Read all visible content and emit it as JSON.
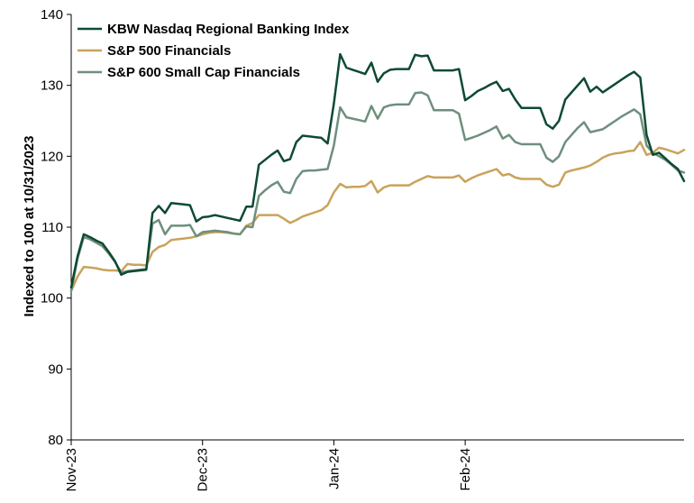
{
  "chart_data": {
    "type": "line",
    "title": "",
    "xlabel": "",
    "ylabel": "Indexed to 100 at 10/31/2023",
    "ylim": [
      80,
      140
    ],
    "yticks": [
      80,
      90,
      100,
      110,
      120,
      130,
      140
    ],
    "xticks": [
      "Nov-23",
      "Dec-23",
      "Jan-24",
      "Feb-24"
    ],
    "xtick_index": [
      0,
      21,
      42,
      63
    ],
    "legend_position": "top-left",
    "grid": false,
    "series": [
      {
        "name": "KBW Nasdaq Regional Banking Index",
        "color": "#0e4a32",
        "values": [
          101.5,
          105.8,
          109.0,
          108.6,
          108.1,
          107.7,
          106.5,
          105.2,
          103.3,
          103.7,
          103.8,
          103.9,
          104.0,
          112.0,
          113.0,
          112.0,
          113.4,
          113.3,
          113.2,
          113.1,
          110.8,
          111.4,
          111.5,
          111.7,
          111.5,
          111.3,
          111.1,
          110.9,
          112.9,
          112.9,
          118.8,
          119.5,
          120.2,
          120.8,
          119.3,
          119.6,
          122.0,
          122.9,
          122.8,
          122.7,
          122.6,
          121.8,
          127.4,
          134.4,
          132.5,
          132.2,
          131.9,
          131.6,
          133.2,
          130.5,
          131.7,
          132.2,
          132.3,
          132.3,
          132.3,
          134.3,
          134.1,
          134.2,
          132.1,
          132.1,
          132.1,
          132.1,
          132.3,
          127.9,
          128.5,
          129.2,
          129.6,
          130.1,
          130.5,
          129.2,
          129.5,
          128.0,
          126.8,
          126.8,
          126.8,
          126.8,
          124.5,
          123.9,
          125.0,
          128.0,
          129.0,
          130.0,
          131.0,
          129.1,
          129.8,
          129.0,
          129.6,
          130.2,
          130.8,
          131.4,
          131.9,
          131.1,
          123.0,
          120.2,
          120.5,
          119.7,
          118.9,
          118.2,
          116.5
        ]
      },
      {
        "name": "S&P 500 Financials",
        "color": "#c9a35a",
        "values": [
          101.0,
          103.0,
          104.4,
          104.3,
          104.2,
          104.0,
          103.9,
          103.9,
          103.8,
          104.8,
          104.7,
          104.7,
          104.6,
          106.5,
          107.2,
          107.5,
          108.2,
          108.3,
          108.4,
          108.5,
          108.7,
          109.0,
          109.2,
          109.3,
          109.3,
          109.2,
          109.1,
          109.0,
          110.2,
          110.6,
          111.7,
          111.7,
          111.7,
          111.7,
          111.2,
          110.6,
          111.0,
          111.5,
          111.8,
          112.1,
          112.4,
          113.1,
          114.9,
          116.1,
          115.6,
          115.7,
          115.7,
          115.8,
          116.5,
          114.9,
          115.6,
          115.9,
          115.9,
          115.9,
          115.9,
          116.4,
          116.8,
          117.2,
          117.0,
          117.0,
          117.0,
          117.0,
          117.3,
          116.4,
          116.9,
          117.3,
          117.6,
          117.9,
          118.2,
          117.3,
          117.5,
          117.0,
          116.8,
          116.8,
          116.8,
          116.8,
          116.0,
          115.7,
          116.0,
          117.7,
          118.0,
          118.2,
          118.4,
          118.7,
          119.2,
          119.8,
          120.2,
          120.4,
          120.5,
          120.7,
          120.8,
          122.0,
          120.2,
          120.5,
          121.2,
          121.0,
          120.7,
          120.4,
          120.9
        ]
      },
      {
        "name": "S&P 600 Small Cap Financials",
        "color": "#6e8f7e",
        "values": [
          101.0,
          105.5,
          108.6,
          108.3,
          107.8,
          107.3,
          106.3,
          105.1,
          103.6,
          103.8,
          103.9,
          104.0,
          104.1,
          110.5,
          111.0,
          109.0,
          110.2,
          110.2,
          110.2,
          110.3,
          108.7,
          109.3,
          109.4,
          109.5,
          109.4,
          109.3,
          109.1,
          109.0,
          110.1,
          110.0,
          114.4,
          115.2,
          115.9,
          116.4,
          115.0,
          114.8,
          116.8,
          117.9,
          118.0,
          118.0,
          118.1,
          118.2,
          121.5,
          126.9,
          125.5,
          125.3,
          125.1,
          124.9,
          127.1,
          125.3,
          126.9,
          127.2,
          127.3,
          127.3,
          127.3,
          128.9,
          129.0,
          128.6,
          126.5,
          126.5,
          126.5,
          126.5,
          126.0,
          122.3,
          122.6,
          122.9,
          123.3,
          123.7,
          124.2,
          122.5,
          123.0,
          122.0,
          121.7,
          121.7,
          121.7,
          121.7,
          119.8,
          119.2,
          120.0,
          122.0,
          123.0,
          124.0,
          124.8,
          123.4,
          123.6,
          123.8,
          124.4,
          125.0,
          125.6,
          126.1,
          126.6,
          125.9,
          121.5,
          120.5,
          120.0,
          119.5,
          118.8,
          118.0,
          117.7
        ]
      }
    ]
  }
}
